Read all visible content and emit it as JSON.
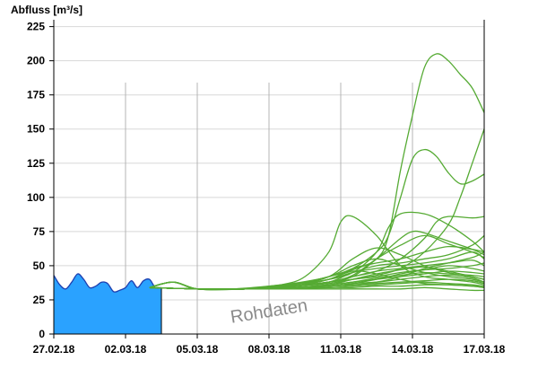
{
  "chart_data": {
    "type": "line",
    "ylabel": "Abfluss [m³/s]",
    "ylim": [
      0,
      230
    ],
    "yticks": [
      "0",
      "25",
      "50",
      "75",
      "100",
      "125",
      "150",
      "175",
      "200",
      "225"
    ],
    "xticks": [
      "27.02.18",
      "02.03.18",
      "05.03.18",
      "08.03.18",
      "11.03.18",
      "14.03.18",
      "17.03.18"
    ],
    "watermark": "Rohdaten",
    "grid": "horizontal-and-vertical",
    "colors": {
      "observed": "#2aa2ff",
      "observed_line": "#1d3fb0",
      "forecast": "#55aa33",
      "grid": "#d8d8d8",
      "vgrid": "#b4b4b4"
    },
    "observed": {
      "x": [
        "2018-02-27 00:00",
        "2018-02-27 06:00",
        "2018-02-27 12:00",
        "2018-02-27 18:00",
        "2018-02-28 00:00",
        "2018-02-28 06:00",
        "2018-02-28 12:00",
        "2018-02-28 18:00",
        "2018-03-01 00:00",
        "2018-03-01 06:00",
        "2018-03-01 12:00",
        "2018-03-01 18:00",
        "2018-03-02 00:00",
        "2018-03-02 06:00",
        "2018-03-02 12:00",
        "2018-03-02 18:00",
        "2018-03-03 00:00",
        "2018-03-03 06:00",
        "2018-03-03 12:00"
      ],
      "y": [
        43,
        36,
        33,
        38,
        44,
        40,
        34,
        35,
        38,
        37,
        31,
        32,
        34,
        39,
        34,
        39,
        40,
        34,
        34
      ]
    },
    "forecast_series": [
      {
        "x": [
          "2018-03-03 00:00",
          "2018-03-04 00:00",
          "2018-03-05 00:00",
          "2018-03-06 12:00",
          "2018-03-07 12:00",
          "2018-03-08 12:00",
          "2018-03-09 12:00",
          "2018-03-10 12:00",
          "2018-03-11 12:00",
          "2018-03-12 12:00",
          "2018-03-13 00:00",
          "2018-03-13 12:00",
          "2018-03-14 00:00",
          "2018-03-14 12:00",
          "2018-03-15 00:00",
          "2018-03-15 12:00",
          "2018-03-16 00:00",
          "2018-03-16 12:00",
          "2018-03-17 00:00"
        ],
        "y": [
          34,
          38,
          33,
          33,
          34,
          36,
          38,
          42,
          47,
          55,
          72,
          120,
          160,
          195,
          205,
          200,
          190,
          180,
          162
        ]
      },
      {
        "x": [
          "2018-03-03 00:00",
          "2018-03-04 00:00",
          "2018-03-05 00:00",
          "2018-03-06 12:00",
          "2018-03-08 00:00",
          "2018-03-09 12:00",
          "2018-03-10 12:00",
          "2018-03-11 12:00",
          "2018-03-12 12:00",
          "2018-03-13 00:00",
          "2018-03-13 12:00",
          "2018-03-14 00:00",
          "2018-03-14 12:00",
          "2018-03-15 00:00",
          "2018-03-15 12:00",
          "2018-03-16 00:00",
          "2018-03-16 12:00",
          "2018-03-17 00:00"
        ],
        "y": [
          34,
          38,
          33,
          33,
          35,
          38,
          42,
          48,
          60,
          72,
          100,
          128,
          135,
          130,
          118,
          110,
          112,
          117
        ]
      },
      {
        "x": [
          "2018-03-03 00:00",
          "2018-03-04 00:00",
          "2018-03-05 00:00",
          "2018-03-07 00:00",
          "2018-03-09 00:00",
          "2018-03-10 12:00",
          "2018-03-11 12:00",
          "2018-03-12 12:00",
          "2018-03-13 12:00",
          "2018-03-14 12:00",
          "2018-03-15 12:00",
          "2018-03-16 00:00",
          "2018-03-16 12:00",
          "2018-03-17 00:00"
        ],
        "y": [
          34,
          38,
          33,
          33,
          35,
          38,
          40,
          43,
          48,
          60,
          80,
          100,
          125,
          150
        ]
      },
      {
        "x": [
          "2018-03-03 00:00",
          "2018-03-04 00:00",
          "2018-03-05 00:00",
          "2018-03-07 00:00",
          "2018-03-08 12:00",
          "2018-03-09 12:00",
          "2018-03-10 12:00",
          "2018-03-11 00:00",
          "2018-03-11 12:00",
          "2018-03-12 12:00",
          "2018-03-13 12:00",
          "2018-03-14 12:00",
          "2018-03-15 12:00",
          "2018-03-16 12:00",
          "2018-03-17 00:00"
        ],
        "y": [
          34,
          38,
          33,
          33,
          36,
          42,
          60,
          82,
          86,
          72,
          50,
          42,
          40,
          38,
          36
        ]
      },
      {
        "x": [
          "2018-03-03 00:00",
          "2018-03-04 00:00",
          "2018-03-05 00:00",
          "2018-03-07 00:00",
          "2018-03-09 00:00",
          "2018-03-10 12:00",
          "2018-03-11 12:00",
          "2018-03-12 12:00",
          "2018-03-13 00:00",
          "2018-03-13 12:00",
          "2018-03-14 12:00",
          "2018-03-15 12:00",
          "2018-03-16 12:00",
          "2018-03-17 00:00"
        ],
        "y": [
          34,
          38,
          33,
          33,
          36,
          40,
          45,
          60,
          78,
          88,
          88,
          80,
          68,
          60
        ]
      },
      {
        "x": [
          "2018-03-03 00:00",
          "2018-03-04 00:00",
          "2018-03-05 00:00",
          "2018-03-07 00:00",
          "2018-03-09 00:00",
          "2018-03-10 12:00",
          "2018-03-11 12:00",
          "2018-03-12 12:00",
          "2018-03-13 12:00",
          "2018-03-14 12:00",
          "2018-03-15 00:00",
          "2018-03-15 12:00",
          "2018-03-16 12:00",
          "2018-03-17 00:00"
        ],
        "y": [
          34,
          38,
          33,
          33,
          35,
          38,
          42,
          46,
          55,
          70,
          82,
          86,
          85,
          86
        ]
      },
      {
        "x": [
          "2018-03-03 00:00",
          "2018-03-05 00:00",
          "2018-03-07 00:00",
          "2018-03-09 00:00",
          "2018-03-10 12:00",
          "2018-03-11 12:00",
          "2018-03-12 12:00",
          "2018-03-13 12:00",
          "2018-03-14 00:00",
          "2018-03-14 12:00",
          "2018-03-15 12:00",
          "2018-03-16 12:00",
          "2018-03-17 00:00"
        ],
        "y": [
          34,
          33,
          33,
          35,
          38,
          42,
          55,
          70,
          75,
          74,
          68,
          62,
          58
        ]
      },
      {
        "x": [
          "2018-03-03 00:00",
          "2018-03-05 00:00",
          "2018-03-07 00:00",
          "2018-03-09 00:00",
          "2018-03-10 12:00",
          "2018-03-11 12:00",
          "2018-03-12 12:00",
          "2018-03-13 12:00",
          "2018-03-14 12:00",
          "2018-03-15 12:00",
          "2018-03-16 12:00",
          "2018-03-17 00:00"
        ],
        "y": [
          34,
          33,
          33,
          35,
          38,
          43,
          55,
          65,
          72,
          66,
          60,
          56
        ]
      },
      {
        "x": [
          "2018-03-03 00:00",
          "2018-03-05 00:00",
          "2018-03-07 00:00",
          "2018-03-09 00:00",
          "2018-03-10 12:00",
          "2018-03-11 12:00",
          "2018-03-12 12:00",
          "2018-03-13 12:00",
          "2018-03-14 12:00",
          "2018-03-15 12:00",
          "2018-03-16 12:00",
          "2018-03-17 00:00"
        ],
        "y": [
          34,
          33,
          33,
          36,
          42,
          55,
          63,
          58,
          50,
          45,
          42,
          40
        ]
      },
      {
        "x": [
          "2018-03-03 00:00",
          "2018-03-05 00:00",
          "2018-03-07 00:00",
          "2018-03-09 00:00",
          "2018-03-10 12:00",
          "2018-03-11 12:00",
          "2018-03-12 12:00",
          "2018-03-13 12:00",
          "2018-03-14 12:00",
          "2018-03-15 12:00",
          "2018-03-16 12:00",
          "2018-03-17 00:00"
        ],
        "y": [
          34,
          33,
          33,
          35,
          40,
          48,
          52,
          55,
          60,
          64,
          62,
          60
        ]
      },
      {
        "x": [
          "2018-03-03 00:00",
          "2018-03-05 00:00",
          "2018-03-07 00:00",
          "2018-03-09 00:00",
          "2018-03-10 12:00",
          "2018-03-11 12:00",
          "2018-03-12 12:00",
          "2018-03-13 12:00",
          "2018-03-14 12:00",
          "2018-03-15 12:00",
          "2018-03-16 12:00",
          "2018-03-17 00:00"
        ],
        "y": [
          34,
          33,
          33,
          35,
          38,
          45,
          50,
          52,
          55,
          58,
          65,
          72
        ]
      },
      {
        "x": [
          "2018-03-03 00:00",
          "2018-03-05 00:00",
          "2018-03-07 00:00",
          "2018-03-09 00:00",
          "2018-03-10 12:00",
          "2018-03-11 12:00",
          "2018-03-12 12:00",
          "2018-03-13 12:00",
          "2018-03-14 12:00",
          "2018-03-15 12:00",
          "2018-03-16 12:00",
          "2018-03-17 00:00"
        ],
        "y": [
          34,
          33,
          33,
          37,
          42,
          50,
          55,
          50,
          45,
          42,
          40,
          38
        ]
      },
      {
        "x": [
          "2018-03-03 00:00",
          "2018-03-05 00:00",
          "2018-03-07 00:00",
          "2018-03-09 00:00",
          "2018-03-10 12:00",
          "2018-03-11 12:00",
          "2018-03-12 12:00",
          "2018-03-13 12:00",
          "2018-03-14 12:00",
          "2018-03-15 12:00",
          "2018-03-16 12:00",
          "2018-03-17 00:00"
        ],
        "y": [
          34,
          33,
          33,
          36,
          40,
          45,
          48,
          50,
          52,
          55,
          60,
          55
        ]
      },
      {
        "x": [
          "2018-03-03 00:00",
          "2018-03-05 00:00",
          "2018-03-07 00:00",
          "2018-03-09 00:00",
          "2018-03-10 12:00",
          "2018-03-11 12:00",
          "2018-03-12 12:00",
          "2018-03-13 12:00",
          "2018-03-14 12:00",
          "2018-03-15 12:00",
          "2018-03-16 12:00",
          "2018-03-17 00:00"
        ],
        "y": [
          34,
          33,
          33,
          35,
          38,
          42,
          46,
          48,
          50,
          52,
          54,
          50
        ]
      },
      {
        "x": [
          "2018-03-03 00:00",
          "2018-03-05 00:00",
          "2018-03-07 00:00",
          "2018-03-09 00:00",
          "2018-03-10 12:00",
          "2018-03-11 12:00",
          "2018-03-12 12:00",
          "2018-03-13 12:00",
          "2018-03-14 12:00",
          "2018-03-15 12:00",
          "2018-03-16 12:00",
          "2018-03-17 00:00"
        ],
        "y": [
          34,
          33,
          33,
          35,
          37,
          40,
          42,
          45,
          47,
          48,
          50,
          52
        ]
      },
      {
        "x": [
          "2018-03-03 00:00",
          "2018-03-05 00:00",
          "2018-03-07 00:00",
          "2018-03-09 00:00",
          "2018-03-10 12:00",
          "2018-03-11 12:00",
          "2018-03-12 12:00",
          "2018-03-13 12:00",
          "2018-03-14 12:00",
          "2018-03-15 12:00",
          "2018-03-16 12:00",
          "2018-03-17 00:00"
        ],
        "y": [
          34,
          33,
          33,
          34,
          36,
          38,
          40,
          42,
          44,
          46,
          45,
          44
        ]
      },
      {
        "x": [
          "2018-03-03 00:00",
          "2018-03-05 00:00",
          "2018-03-07 00:00",
          "2018-03-09 00:00",
          "2018-03-10 12:00",
          "2018-03-11 12:00",
          "2018-03-12 12:00",
          "2018-03-13 12:00",
          "2018-03-14 12:00",
          "2018-03-15 12:00",
          "2018-03-16 12:00",
          "2018-03-17 00:00"
        ],
        "y": [
          34,
          33,
          33,
          34,
          36,
          40,
          44,
          47,
          49,
          46,
          42,
          40
        ]
      },
      {
        "x": [
          "2018-03-03 00:00",
          "2018-03-05 00:00",
          "2018-03-07 00:00",
          "2018-03-09 00:00",
          "2018-03-10 12:00",
          "2018-03-11 12:00",
          "2018-03-12 12:00",
          "2018-03-13 12:00",
          "2018-03-14 12:00",
          "2018-03-15 12:00",
          "2018-03-16 12:00",
          "2018-03-17 00:00"
        ],
        "y": [
          34,
          33,
          33,
          34,
          35,
          37,
          38,
          40,
          42,
          43,
          41,
          38
        ]
      },
      {
        "x": [
          "2018-03-03 00:00",
          "2018-03-05 00:00",
          "2018-03-07 00:00",
          "2018-03-09 00:00",
          "2018-03-10 12:00",
          "2018-03-11 12:00",
          "2018-03-12 12:00",
          "2018-03-13 12:00",
          "2018-03-14 12:00",
          "2018-03-15 12:00",
          "2018-03-16 12:00",
          "2018-03-17 00:00"
        ],
        "y": [
          34,
          33,
          33,
          34,
          35,
          36,
          37,
          38,
          39,
          40,
          39,
          37
        ]
      },
      {
        "x": [
          "2018-03-03 00:00",
          "2018-03-05 00:00",
          "2018-03-07 00:00",
          "2018-03-09 00:00",
          "2018-03-10 12:00",
          "2018-03-11 12:00",
          "2018-03-12 12:00",
          "2018-03-13 12:00",
          "2018-03-14 12:00",
          "2018-03-15 12:00",
          "2018-03-16 12:00",
          "2018-03-17 00:00"
        ],
        "y": [
          34,
          33,
          33,
          34,
          34,
          35,
          36,
          37,
          38,
          37,
          36,
          35
        ]
      },
      {
        "x": [
          "2018-03-03 00:00",
          "2018-03-05 00:00",
          "2018-03-07 00:00",
          "2018-03-09 00:00",
          "2018-03-10 12:00",
          "2018-03-11 12:00",
          "2018-03-12 12:00",
          "2018-03-13 12:00",
          "2018-03-14 12:00",
          "2018-03-15 12:00",
          "2018-03-16 12:00",
          "2018-03-17 00:00"
        ],
        "y": [
          34,
          33,
          33,
          33,
          34,
          34,
          35,
          35,
          36,
          36,
          35,
          34
        ]
      },
      {
        "x": [
          "2018-03-03 00:00",
          "2018-03-05 00:00",
          "2018-03-07 00:00",
          "2018-03-09 00:00",
          "2018-03-10 12:00",
          "2018-03-11 12:00",
          "2018-03-12 12:00",
          "2018-03-13 12:00",
          "2018-03-14 12:00",
          "2018-03-15 12:00",
          "2018-03-16 12:00",
          "2018-03-17 00:00"
        ],
        "y": [
          34,
          33,
          33,
          33,
          33,
          33,
          33,
          33,
          34,
          33,
          32,
          32
        ]
      },
      {
        "x": [
          "2018-03-03 00:00",
          "2018-03-05 00:00",
          "2018-03-07 00:00",
          "2018-03-09 00:00",
          "2018-03-10 12:00",
          "2018-03-11 12:00",
          "2018-03-12 12:00",
          "2018-03-13 12:00",
          "2018-03-14 12:00",
          "2018-03-15 12:00",
          "2018-03-16 12:00",
          "2018-03-17 00:00"
        ],
        "y": [
          34,
          33,
          33,
          35,
          40,
          46,
          44,
          40,
          37,
          36,
          35,
          34
        ]
      },
      {
        "x": [
          "2018-03-03 00:00",
          "2018-03-05 00:00",
          "2018-03-07 00:00",
          "2018-03-09 00:00",
          "2018-03-10 12:00",
          "2018-03-11 12:00",
          "2018-03-12 12:00",
          "2018-03-13 12:00",
          "2018-03-14 12:00",
          "2018-03-15 12:00",
          "2018-03-16 12:00",
          "2018-03-17 00:00"
        ],
        "y": [
          34,
          33,
          33,
          34,
          35,
          36,
          38,
          42,
          48,
          52,
          56,
          60
        ]
      },
      {
        "x": [
          "2018-03-03 00:00",
          "2018-03-05 00:00",
          "2018-03-07 00:00",
          "2018-03-09 00:00",
          "2018-03-10 12:00",
          "2018-03-11 12:00",
          "2018-03-12 12:00",
          "2018-03-13 12:00",
          "2018-03-14 12:00",
          "2018-03-15 12:00",
          "2018-03-16 12:00",
          "2018-03-17 00:00"
        ],
        "y": [
          34,
          33,
          33,
          34,
          35,
          37,
          40,
          44,
          47,
          50,
          48,
          46
        ]
      },
      {
        "x": [
          "2018-03-03 00:00",
          "2018-03-05 00:00",
          "2018-03-07 00:00",
          "2018-03-09 00:00",
          "2018-03-10 12:00",
          "2018-03-11 12:00",
          "2018-03-12 12:00",
          "2018-03-13 12:00",
          "2018-03-14 12:00",
          "2018-03-15 12:00",
          "2018-03-16 12:00",
          "2018-03-17 00:00"
        ],
        "y": [
          34,
          33,
          33,
          34,
          36,
          38,
          41,
          43,
          45,
          44,
          43,
          42
        ]
      }
    ]
  }
}
